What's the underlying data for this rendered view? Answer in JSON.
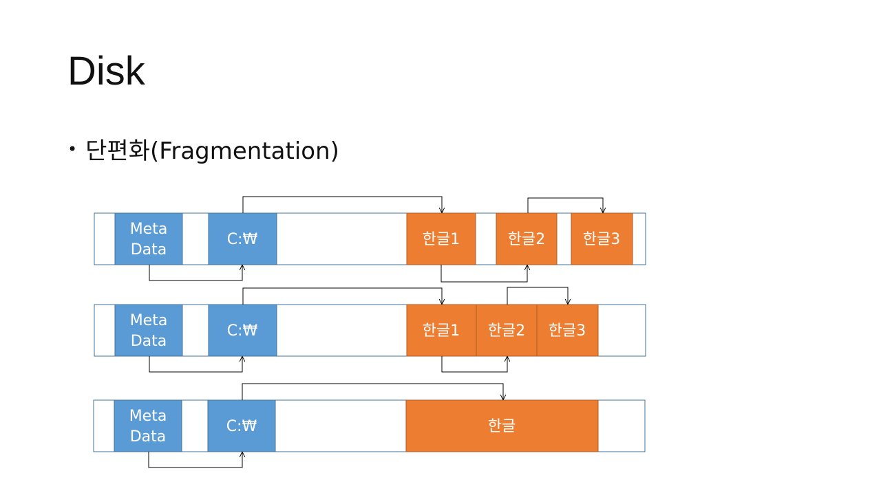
{
  "title": "Disk",
  "bullet": "단편화(Fragmentation)",
  "colors": {
    "blue": "#5B9BD5",
    "orange": "#ED7D31",
    "frame": "#41719C",
    "arrow": "#000000"
  },
  "rows": [
    {
      "meta": "Meta Data",
      "dir": "C:\\",
      "files": [
        "한글1",
        "한글2",
        "한글3"
      ]
    },
    {
      "meta": "Meta Data",
      "dir": "C:\\",
      "files": [
        "한글1",
        "한글2",
        "한글3"
      ]
    },
    {
      "meta": "Meta Data",
      "dir": "C:\\",
      "files": [
        "한글"
      ]
    }
  ]
}
